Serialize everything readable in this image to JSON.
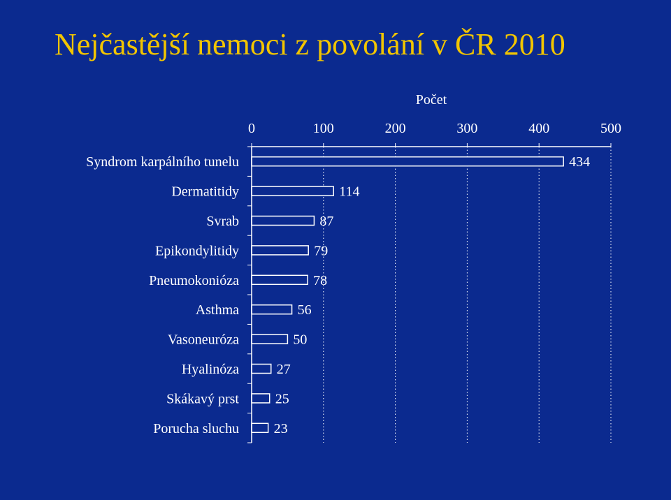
{
  "slide": {
    "title": "Nejčastější nemoci z povolání v ČR 2010"
  },
  "colors": {
    "background": "#0b2a8f",
    "title": "#f2c500",
    "text": "#ffffff",
    "bar_fill": "#0b2a8f",
    "bar_stroke": "#ffffff"
  },
  "chart_data": {
    "type": "bar",
    "orientation": "horizontal",
    "title": "",
    "xlabel": "Počet",
    "ylabel": "",
    "xaxis_position": "top",
    "xlim": [
      0,
      500
    ],
    "xticks": [
      0,
      100,
      200,
      300,
      400,
      500
    ],
    "grid": "vertical-dotted",
    "legend": "none",
    "categories": [
      "Syndrom karpálního tunelu",
      "Dermatitidy",
      "Svrab",
      "Epikondylitidy",
      "Pneumokonióza",
      "Asthma",
      "Vasoneuróza",
      "Hyalinóza",
      "Skákavý prst",
      "Porucha sluchu"
    ],
    "values": [
      434,
      114,
      87,
      79,
      78,
      56,
      50,
      27,
      25,
      23
    ],
    "data_labels": [
      "434",
      "114",
      "87",
      "79",
      "78",
      "56",
      "50",
      "27",
      "25",
      "23"
    ]
  }
}
